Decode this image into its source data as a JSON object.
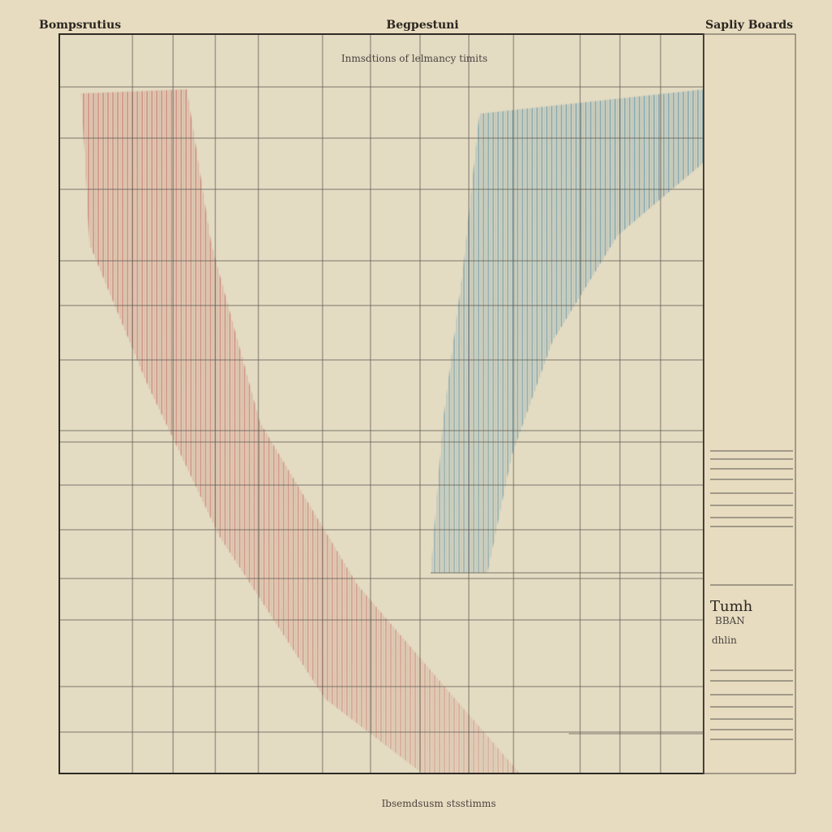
{
  "header": {
    "left": "Bompsrutius",
    "title": "Begpestuni",
    "right": "Sapliy Boards"
  },
  "subtitle": "Inmsdtions of lelmancy timits",
  "footer": "Ibsemdsusm stsstimms",
  "legend": {
    "heading": "Tumh",
    "line1": "BBAN",
    "line2": "dhlin"
  }
}
